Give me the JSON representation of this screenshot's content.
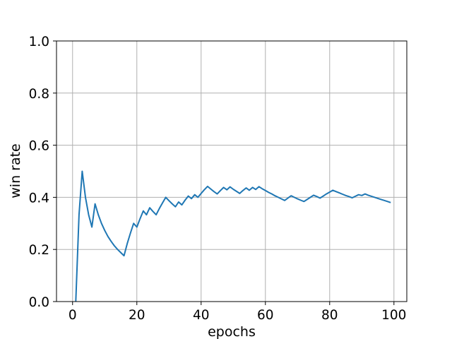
{
  "chart_data": {
    "type": "line",
    "title": "",
    "xlabel": "epochs",
    "ylabel": "win rate",
    "xlim": [
      -5,
      104
    ],
    "ylim": [
      0.0,
      1.0
    ],
    "xticks": [
      0,
      20,
      40,
      60,
      80,
      100
    ],
    "yticks": [
      0.0,
      0.2,
      0.4,
      0.6,
      0.8,
      1.0
    ],
    "xtick_labels": [
      "0",
      "20",
      "40",
      "60",
      "80",
      "100"
    ],
    "ytick_labels": [
      "0.0",
      "0.2",
      "0.4",
      "0.6",
      "0.8",
      "1.0"
    ],
    "grid": true,
    "line_color": "#1f77b4",
    "grid_color": "#b0b0b0",
    "series": [
      {
        "x": [
          1,
          2,
          3,
          4,
          5,
          6,
          7,
          8,
          9,
          10,
          11,
          12,
          13,
          14,
          15,
          16,
          17,
          18,
          19,
          20,
          21,
          22,
          23,
          24,
          25,
          26,
          27,
          28,
          29,
          30,
          31,
          32,
          33,
          34,
          35,
          36,
          37,
          38,
          39,
          40,
          41,
          42,
          43,
          44,
          45,
          46,
          47,
          48,
          49,
          50,
          51,
          52,
          53,
          54,
          55,
          56,
          57,
          58,
          59,
          60,
          61,
          62,
          63,
          64,
          65,
          66,
          67,
          68,
          69,
          70,
          71,
          72,
          73,
          74,
          75,
          76,
          77,
          78,
          79,
          80,
          81,
          82,
          83,
          84,
          85,
          86,
          87,
          88,
          89,
          90,
          91,
          92,
          93,
          94,
          95,
          96,
          97,
          98,
          99
        ],
        "y": [
          0.0,
          0.333,
          0.5,
          0.4,
          0.333,
          0.286,
          0.375,
          0.333,
          0.3,
          0.273,
          0.25,
          0.231,
          0.214,
          0.2,
          0.188,
          0.176,
          0.222,
          0.263,
          0.3,
          0.286,
          0.318,
          0.348,
          0.333,
          0.36,
          0.346,
          0.333,
          0.357,
          0.379,
          0.4,
          0.387,
          0.375,
          0.364,
          0.382,
          0.371,
          0.389,
          0.405,
          0.395,
          0.41,
          0.4,
          0.415,
          0.429,
          0.442,
          0.432,
          0.422,
          0.413,
          0.426,
          0.438,
          0.429,
          0.44,
          0.431,
          0.423,
          0.415,
          0.426,
          0.436,
          0.427,
          0.438,
          0.43,
          0.441,
          0.433,
          0.426,
          0.419,
          0.413,
          0.406,
          0.4,
          0.394,
          0.388,
          0.397,
          0.406,
          0.4,
          0.394,
          0.389,
          0.384,
          0.392,
          0.4,
          0.408,
          0.403,
          0.397,
          0.405,
          0.413,
          0.42,
          0.427,
          0.422,
          0.417,
          0.412,
          0.407,
          0.403,
          0.398,
          0.404,
          0.41,
          0.407,
          0.413,
          0.408,
          0.404,
          0.4,
          0.396,
          0.392,
          0.388,
          0.384,
          0.38
        ]
      }
    ]
  }
}
